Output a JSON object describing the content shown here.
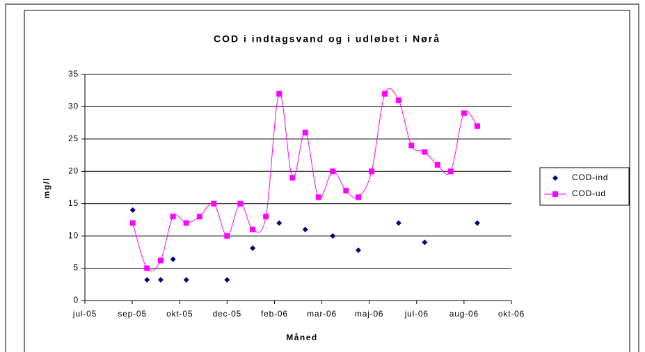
{
  "chart_data": {
    "type": "scatter-line",
    "title": "COD i indtagsvand og i udløbet i Nørå",
    "x_label": "Måned",
    "y_label": "mg/l",
    "xlim": [
      0,
      9
    ],
    "xticks": [
      {
        "value": 0,
        "label": "jul-05"
      },
      {
        "value": 1,
        "label": "sep-05"
      },
      {
        "value": 2,
        "label": "okt-05"
      },
      {
        "value": 3,
        "label": "dec-05"
      },
      {
        "value": 4,
        "label": "feb-06"
      },
      {
        "value": 5,
        "label": "mar-06"
      },
      {
        "value": 6,
        "label": "maj-06"
      },
      {
        "value": 7,
        "label": "jul-06"
      },
      {
        "value": 8,
        "label": "aug-06"
      },
      {
        "value": 9,
        "label": "okt-06"
      }
    ],
    "ylim": [
      0,
      35
    ],
    "yticks": [
      0,
      5,
      10,
      15,
      20,
      25,
      30,
      35
    ],
    "grid": true,
    "legend": "right",
    "series": [
      {
        "name": "COD-ind",
        "color": "#000080",
        "marker": "diamond",
        "line": false,
        "x": [
          1.01,
          1.31,
          1.6,
          1.86,
          2.14,
          3.0,
          3.54,
          4.1,
          4.65,
          5.23,
          5.77,
          6.62,
          7.17,
          8.28
        ],
        "values": [
          14,
          3.2,
          3.2,
          6.4,
          3.2,
          3.2,
          8.1,
          12,
          11,
          10,
          7.8,
          12,
          9,
          12
        ]
      },
      {
        "name": "COD-ud",
        "color": "#ff00ff",
        "marker": "square",
        "line": true,
        "x": [
          1.01,
          1.31,
          1.6,
          1.86,
          2.14,
          2.42,
          2.72,
          3.0,
          3.28,
          3.54,
          3.82,
          4.1,
          4.38,
          4.65,
          4.93,
          5.23,
          5.51,
          5.77,
          6.05,
          6.33,
          6.62,
          6.89,
          7.17,
          7.44,
          7.72,
          8.0,
          8.28
        ],
        "values": [
          12,
          5,
          6.2,
          13,
          12,
          13,
          15,
          10,
          15,
          11,
          13,
          32,
          19,
          26,
          16,
          20,
          17,
          16,
          20,
          32,
          31,
          24,
          23,
          21,
          20,
          29,
          27
        ]
      }
    ]
  }
}
